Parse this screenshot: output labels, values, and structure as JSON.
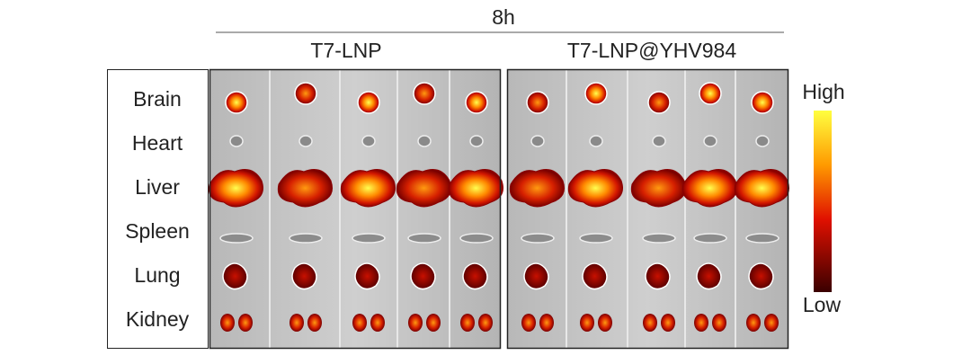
{
  "header": {
    "time": "8h"
  },
  "groups": [
    {
      "label": "T7-LNP"
    },
    {
      "label": "T7-LNP@YHV984"
    }
  ],
  "organs": [
    "Brain",
    "Heart",
    "Liver",
    "Spleen",
    "Lung",
    "Kidney"
  ],
  "scale": {
    "high": "High",
    "low": "Low"
  }
}
